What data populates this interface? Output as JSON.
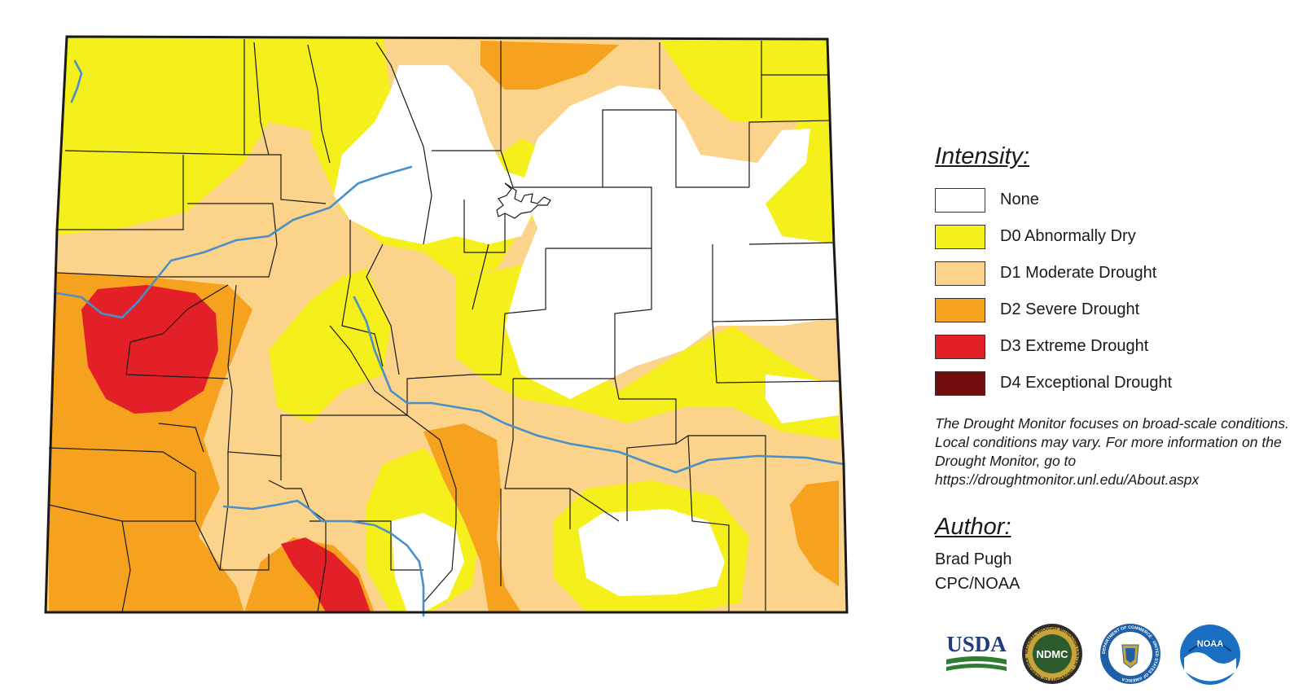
{
  "legend": {
    "title": "Intensity:",
    "categories": [
      {
        "label": "None",
        "color": "#ffffff"
      },
      {
        "label": "D0 Abnormally Dry",
        "color": "#f5ef1c"
      },
      {
        "label": "D1 Moderate Drought",
        "color": "#fbd38a"
      },
      {
        "label": "D2 Severe Drought",
        "color": "#f7a21f"
      },
      {
        "label": "D3 Extreme Drought",
        "color": "#e32027"
      },
      {
        "label": "D4 Exceptional Drought",
        "color": "#730c0c"
      }
    ]
  },
  "note": "The Drought Monitor focuses on broad-scale conditions. Local conditions may vary. For more information on the Drought Monitor, go to https://droughtmonitor.unl.edu/About.aspx",
  "author": {
    "title": "Author:",
    "name": "Brad Pugh",
    "org": "CPC/NOAA"
  },
  "logos": {
    "usda": "USDA",
    "ndmc": "NDMC",
    "ndmc_ring": "NATIONAL DROUGHT MITIGATION CENTER · UNIVERSITY OF NEBRASKA",
    "doc_ring": "DEPARTMENT OF COMMERCE · UNITED STATES OF AMERICA",
    "noaa": "NOAA"
  },
  "colors": {
    "river": "#4a90c8",
    "border": "#1a1a1a"
  }
}
